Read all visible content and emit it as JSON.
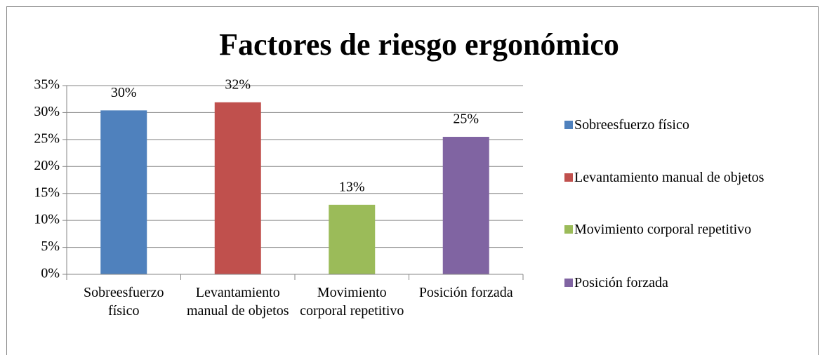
{
  "chart_data": {
    "type": "bar",
    "title": "Factores de riesgo ergonómico",
    "categories": [
      "Sobreesfuerzo físico",
      "Levantamiento manual de objetos",
      "Movimiento corporal repetitivo",
      "Posición forzada"
    ],
    "values": [
      30.4,
      31.9,
      12.9,
      25.5
    ],
    "value_labels": [
      "30%",
      "32%",
      "13%",
      "25%"
    ],
    "colors": [
      "#4f81bd",
      "#c0504d",
      "#9bbb59",
      "#8064a2"
    ],
    "ylim": [
      0,
      35
    ],
    "yticks": [
      {
        "value": 0,
        "label": "0%"
      },
      {
        "value": 5,
        "label": "5%"
      },
      {
        "value": 10,
        "label": "10%"
      },
      {
        "value": 15,
        "label": "15%"
      },
      {
        "value": 20,
        "label": "20%"
      },
      {
        "value": 25,
        "label": "25%"
      },
      {
        "value": 30,
        "label": "30%"
      },
      {
        "value": 35,
        "label": "35%"
      }
    ],
    "grid": true,
    "legend": "right"
  }
}
